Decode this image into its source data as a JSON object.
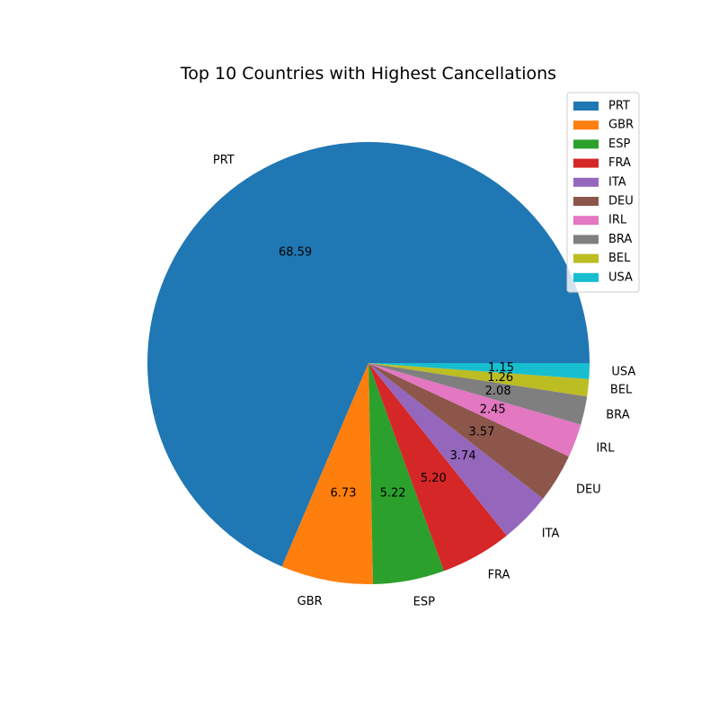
{
  "chart_data": {
    "type": "pie",
    "title": "Top 10 Countries with Highest Cancellations",
    "categories": [
      "PRT",
      "GBR",
      "ESP",
      "FRA",
      "ITA",
      "DEU",
      "IRL",
      "BRA",
      "BEL",
      "USA"
    ],
    "values": [
      68.59,
      6.73,
      5.22,
      5.2,
      3.74,
      3.57,
      2.45,
      2.08,
      1.26,
      1.15
    ],
    "value_labels": [
      "68.59",
      "6.73",
      "5.22",
      "5.20",
      "3.74",
      "3.57",
      "2.45",
      "2.08",
      "1.26",
      "1.15"
    ],
    "colors": [
      "#1f77b4",
      "#ff7f0e",
      "#2ca02c",
      "#d62728",
      "#9467bd",
      "#8c564b",
      "#e377c2",
      "#7f7f7f",
      "#bcbd22",
      "#17becf"
    ],
    "start_angle_deg": 0,
    "direction": "counterclockwise",
    "legend": {
      "position": "top-right",
      "entries": [
        "PRT",
        "GBR",
        "ESP",
        "FRA",
        "ITA",
        "DEU",
        "IRL",
        "BRA",
        "BEL",
        "USA"
      ]
    }
  }
}
